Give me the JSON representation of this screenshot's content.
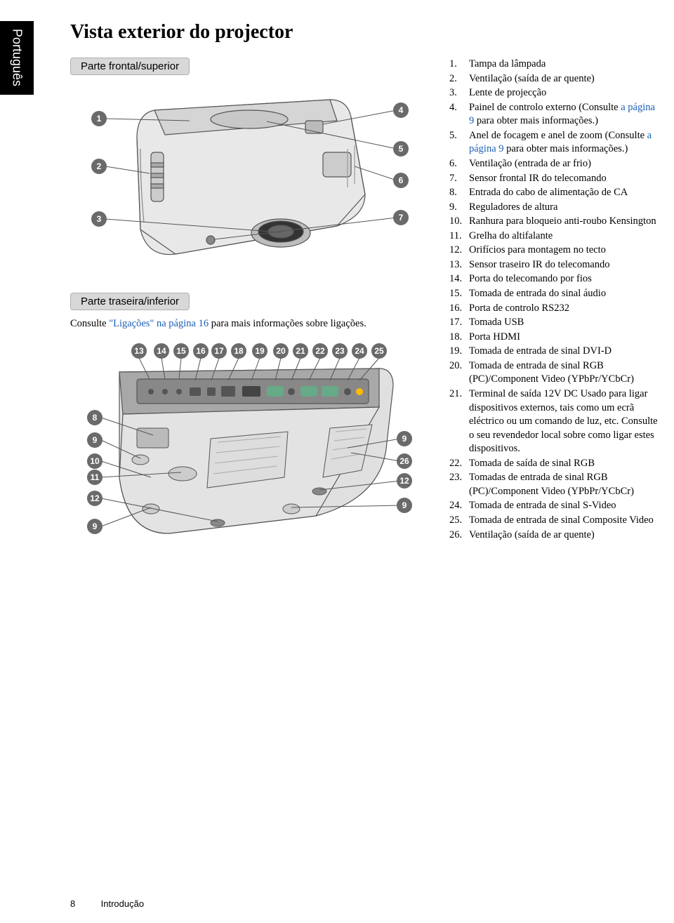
{
  "lang_tab": "Português",
  "page_title": "Vista exterior do projector",
  "front_header": "Parte frontal/superior",
  "rear_header": "Parte traseira/inferior",
  "rear_note_pre": "Consulte ",
  "rear_note_link": "\"Ligações\" na página 16",
  "rear_note_post": " para mais informações sobre ligações.",
  "footer_page": "8",
  "footer_section": "Introdução",
  "front_callouts_left": [
    "1",
    "2",
    "3"
  ],
  "front_callouts_right": [
    "4",
    "5",
    "6",
    "7"
  ],
  "rear_callouts_top": [
    "13",
    "14",
    "15",
    "16",
    "17",
    "18",
    "19",
    "20",
    "21",
    "22",
    "23",
    "24",
    "25"
  ],
  "rear_callouts_left": [
    "8",
    "9",
    "10",
    "11",
    "12",
    "9"
  ],
  "rear_callouts_right": [
    "9",
    "26",
    "12",
    "9"
  ],
  "parts": [
    {
      "n": "1.",
      "t": "Tampa da lâmpada"
    },
    {
      "n": "2.",
      "t": "Ventilação (saída de ar quente)"
    },
    {
      "n": "3.",
      "t": "Lente de projecção"
    },
    {
      "n": "4.",
      "t": "Painel de controlo externo (Consulte ",
      "link": "a página 9",
      "post": " para obter mais informações.)"
    },
    {
      "n": "5.",
      "t": "Anel de focagem e anel de zoom (Consulte ",
      "link": "a página 9",
      "post": " para obter mais informações.)"
    },
    {
      "n": "6.",
      "t": "Ventilação (entrada de ar frio)"
    },
    {
      "n": "7.",
      "t": "Sensor frontal IR do telecomando"
    },
    {
      "n": "8.",
      "t": "Entrada do cabo de alimentação de CA"
    },
    {
      "n": "9.",
      "t": "Reguladores de altura"
    },
    {
      "n": "10.",
      "t": "Ranhura para bloqueio anti-roubo Kensington"
    },
    {
      "n": "11.",
      "t": "Grelha do altifalante"
    },
    {
      "n": "12.",
      "t": "Orifícios para montagem no tecto"
    },
    {
      "n": "13.",
      "t": "Sensor traseiro IR do telecomando"
    },
    {
      "n": "14.",
      "t": "Porta do telecomando por fios"
    },
    {
      "n": "15.",
      "t": "Tomada de entrada do sinal áudio"
    },
    {
      "n": "16.",
      "t": "Porta de controlo RS232"
    },
    {
      "n": "17.",
      "t": "Tomada USB"
    },
    {
      "n": "18.",
      "t": "Porta HDMI"
    },
    {
      "n": "19.",
      "t": "Tomada de entrada de sinal DVI-D"
    },
    {
      "n": "20.",
      "t": "Tomada de entrada de sinal RGB (PC)/Component Video (YPbPr/YCbCr)"
    },
    {
      "n": "21.",
      "t": "Terminal de saída 12V DC Usado para ligar dispositivos externos, tais como um ecrã eléctrico ou um comando de luz, etc. Consulte o seu revendedor local sobre como ligar estes dispositivos."
    },
    {
      "n": "22.",
      "t": "Tomada de saída de sinal RGB"
    },
    {
      "n": "23.",
      "t": "Tomadas de entrada de sinal RGB (PC)/Component Video (YPbPr/YCbCr)"
    },
    {
      "n": "24.",
      "t": "Tomada de entrada de sinal S-Video"
    },
    {
      "n": "25.",
      "t": "Tomada de entrada de sinal Composite Video"
    },
    {
      "n": "26.",
      "t": "Ventilação (saída de ar quente)"
    }
  ]
}
